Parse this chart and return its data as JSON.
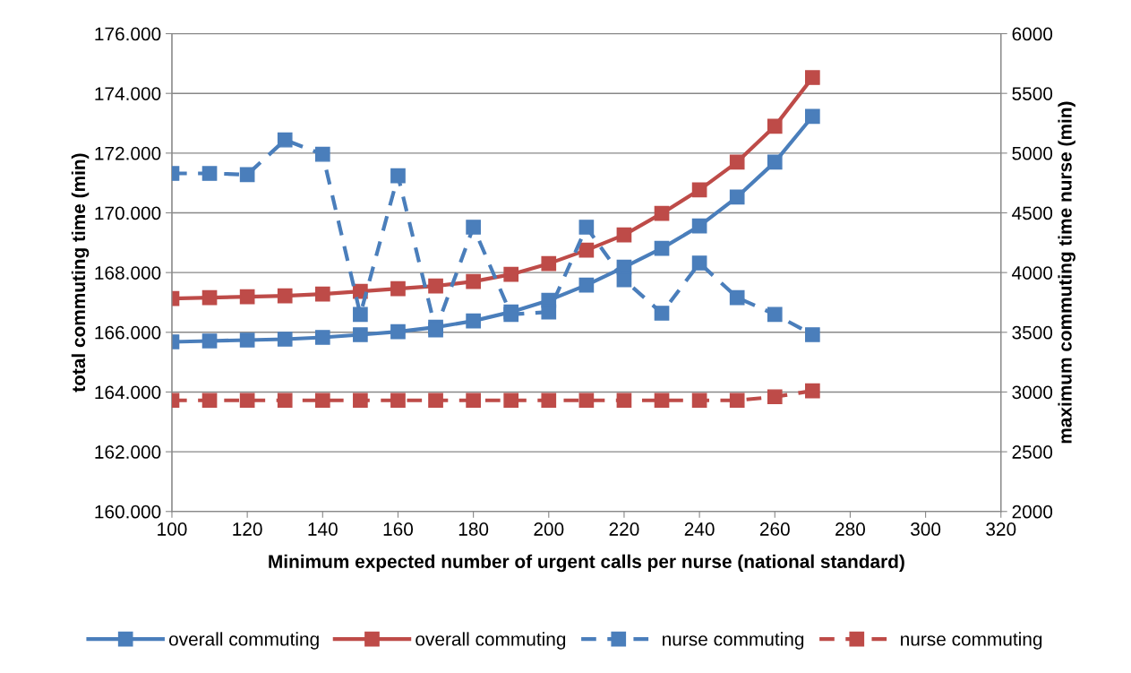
{
  "chart_data": {
    "type": "line",
    "xlabel": "Minimum expected number of urgent calls per nurse (national standard)",
    "ylabel": "total commuting time (min)",
    "y2label": "maximum commuting time nurse (min)",
    "x": [
      100,
      110,
      120,
      130,
      140,
      150,
      160,
      170,
      180,
      190,
      200,
      210,
      220,
      230,
      240,
      250,
      260,
      270
    ],
    "xlim": [
      100,
      320
    ],
    "xticks": [
      100,
      120,
      140,
      160,
      180,
      200,
      220,
      240,
      260,
      280,
      300,
      320
    ],
    "ylim": [
      160000,
      176000
    ],
    "yticks": [
      {
        "value": 160000,
        "label": "160.000"
      },
      {
        "value": 162000,
        "label": "162.000"
      },
      {
        "value": 164000,
        "label": "164.000"
      },
      {
        "value": 166000,
        "label": "166.000"
      },
      {
        "value": 168000,
        "label": "168.000"
      },
      {
        "value": 170000,
        "label": "170.000"
      },
      {
        "value": 172000,
        "label": "172.000"
      },
      {
        "value": 174000,
        "label": "174.000"
      },
      {
        "value": 176000,
        "label": "176.000"
      }
    ],
    "y2lim": [
      2000,
      6000
    ],
    "y2ticks": [
      2000,
      2500,
      3000,
      3500,
      4000,
      4500,
      5000,
      5500,
      6000
    ],
    "grid": "y",
    "legend": "bottom",
    "marker": "square",
    "series": [
      {
        "name": "overall commuting",
        "color": "#4a7ebb",
        "line_style": "solid",
        "values": [
          165680,
          165710,
          165740,
          165770,
          165830,
          165920,
          166020,
          166170,
          166380,
          166680,
          167070,
          167580,
          168180,
          168810,
          169560,
          170530,
          171700,
          173230
        ]
      },
      {
        "name": "overall commuting",
        "color": "#be4b48",
        "line_style": "solid",
        "values": [
          167130,
          167160,
          167190,
          167220,
          167280,
          167370,
          167460,
          167550,
          167700,
          167940,
          168300,
          168750,
          169260,
          169980,
          170770,
          171700,
          172900,
          174530
        ]
      },
      {
        "name": "nurse commuting",
        "color": "#4a7ebb",
        "line_style": "dashed",
        "axis": "y2",
        "values": [
          4830,
          4830,
          4820,
          5110,
          4990,
          3650,
          4810,
          3520,
          4380,
          3650,
          3670,
          4380,
          3940,
          3660,
          4080,
          3790,
          3650,
          3480
        ]
      },
      {
        "name": "nurse commuting",
        "color": "#be4b48",
        "line_style": "dashed",
        "axis": "y2",
        "values": [
          2930,
          2930,
          2930,
          2930,
          2930,
          2930,
          2930,
          2930,
          2930,
          2930,
          2930,
          2930,
          2930,
          2930,
          2930,
          2930,
          2960,
          3010
        ]
      }
    ]
  }
}
